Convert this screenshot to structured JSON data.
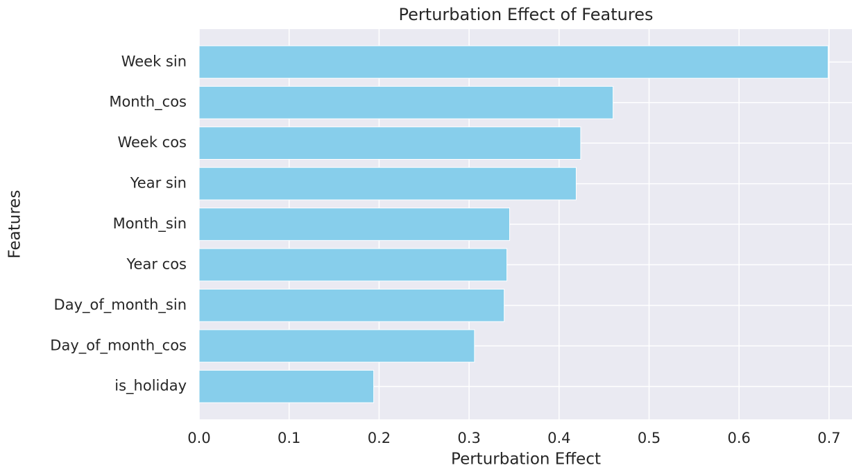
{
  "chart_data": {
    "type": "barh",
    "title": "Perturbation Effect of Features",
    "xlabel": "Perturbation Effect",
    "ylabel": "Features",
    "categories": [
      "Week sin",
      "Month_cos",
      "Week cos",
      "Year sin",
      "Month_sin",
      "Year cos",
      "Day_of_month_sin",
      "Day_of_month_cos",
      "is_holiday"
    ],
    "values": [
      0.699,
      0.46,
      0.424,
      0.419,
      0.345,
      0.342,
      0.339,
      0.306,
      0.194
    ],
    "color": "#87ceeb",
    "xlim": [
      0,
      0.7255
    ],
    "xticks": [
      {
        "value": 0,
        "label": "0.0"
      },
      0.1,
      0.2,
      0.3,
      0.4,
      0.5,
      0.6,
      0.7
    ],
    "grid": true
  }
}
